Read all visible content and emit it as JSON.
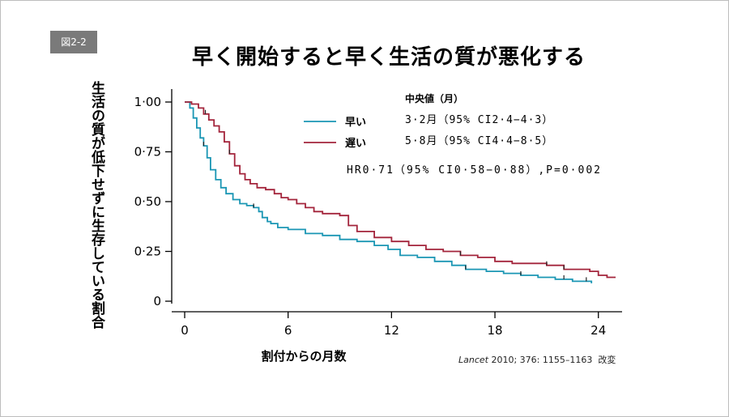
{
  "figure_badge": "図2-2",
  "title": "早く開始すると早く生活の質が悪化する",
  "citation": {
    "journal": "Lancet",
    "details": "2010; 376: 1155–1163",
    "note": "改変"
  },
  "colors": {
    "early": "#1a96b4",
    "late": "#a3243b",
    "axis": "#000000"
  },
  "chart_data": {
    "type": "line",
    "ylabel": "生活の質が低下せずに生存している割合",
    "xlabel": "割付からの月数",
    "xlim": [
      0,
      25
    ],
    "ylim": [
      0,
      1.0
    ],
    "x_ticks": [
      "0",
      "6",
      "12",
      "18",
      "24"
    ],
    "y_ticks": [
      "0",
      "0·25",
      "0·50",
      "0·75",
      "1·00"
    ],
    "grid": false,
    "stats_header": "中央値（月）",
    "hr_text": "HR0·71（95% CI0·58−0·88）,P=0·002",
    "series": [
      {
        "name": "早い",
        "color": "#1a96b4",
        "median_text": "3·2月（95% CI2·4−4·3）",
        "x": [
          0,
          0.3,
          0.5,
          0.7,
          0.9,
          1.1,
          1.3,
          1.5,
          1.8,
          2.1,
          2.4,
          2.8,
          3.2,
          3.6,
          4.0,
          4.3,
          4.5,
          4.8,
          5.0,
          5.4,
          6.0,
          7.0,
          8.0,
          9.0,
          10.0,
          11.0,
          11.8,
          12.5,
          13.5,
          14.5,
          15.5,
          16.3,
          17.5,
          18.5,
          19.5,
          20.5,
          21.5,
          22.5,
          23.3,
          23.6
        ],
        "y": [
          1.0,
          0.97,
          0.92,
          0.87,
          0.82,
          0.78,
          0.72,
          0.66,
          0.61,
          0.57,
          0.54,
          0.51,
          0.49,
          0.48,
          0.47,
          0.45,
          0.42,
          0.4,
          0.39,
          0.37,
          0.36,
          0.34,
          0.33,
          0.31,
          0.3,
          0.28,
          0.26,
          0.23,
          0.22,
          0.2,
          0.18,
          0.16,
          0.15,
          0.14,
          0.13,
          0.12,
          0.11,
          0.1,
          0.1,
          0.09
        ]
      },
      {
        "name": "遅い",
        "color": "#a3243b",
        "median_text": "5·8月（95% CI4·4−8·5）",
        "x": [
          0,
          0.4,
          0.8,
          1.1,
          1.4,
          1.7,
          2.0,
          2.3,
          2.6,
          2.9,
          3.2,
          3.5,
          3.8,
          4.2,
          4.7,
          5.2,
          5.6,
          6.0,
          6.5,
          7.0,
          7.5,
          8.0,
          8.5,
          9.0,
          9.5,
          10.0,
          11.0,
          12.0,
          13.0,
          14.0,
          15.0,
          16.0,
          17.0,
          18.0,
          19.0,
          20.0,
          21.0,
          22.0,
          23.0,
          23.5,
          24.0,
          24.5,
          25.0
        ],
        "y": [
          1.0,
          0.99,
          0.97,
          0.94,
          0.91,
          0.88,
          0.85,
          0.8,
          0.74,
          0.68,
          0.64,
          0.61,
          0.59,
          0.57,
          0.56,
          0.54,
          0.52,
          0.51,
          0.49,
          0.47,
          0.45,
          0.44,
          0.44,
          0.43,
          0.38,
          0.35,
          0.32,
          0.3,
          0.28,
          0.26,
          0.25,
          0.23,
          0.22,
          0.2,
          0.19,
          0.19,
          0.18,
          0.16,
          0.16,
          0.15,
          0.13,
          0.12,
          0.12
        ]
      }
    ]
  }
}
